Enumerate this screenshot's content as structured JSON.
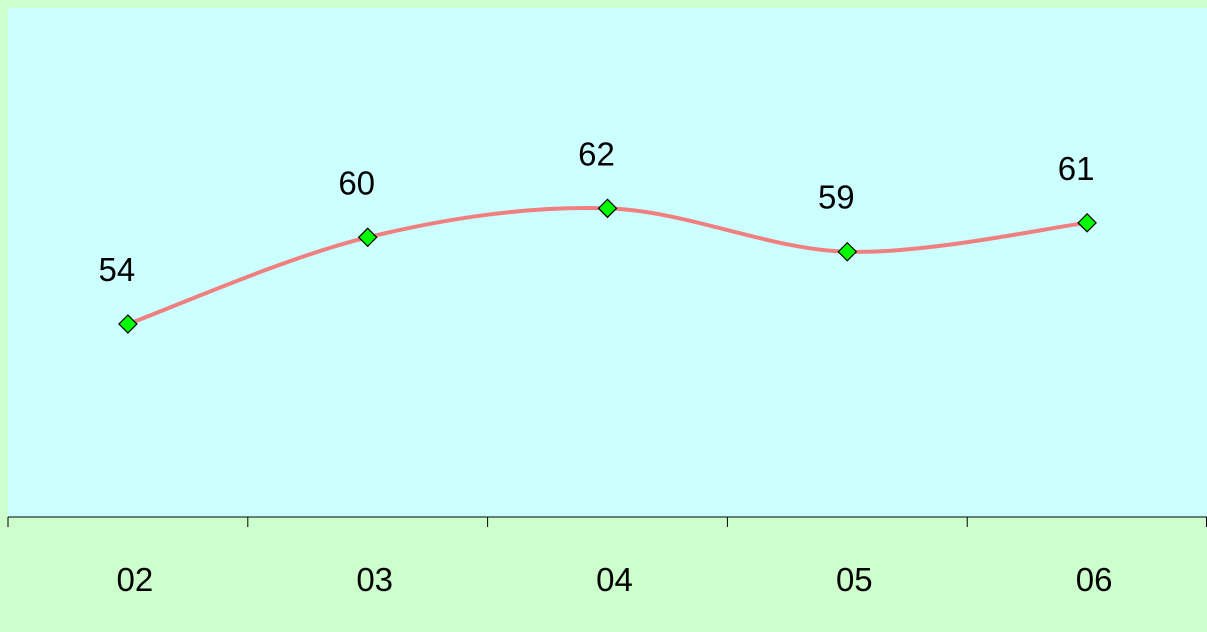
{
  "chart_data": {
    "type": "line",
    "title": "",
    "xlabel": "",
    "ylabel": "",
    "categories": [
      "02",
      "03",
      "04",
      "05",
      "06"
    ],
    "series": [
      {
        "values": [
          54,
          60,
          62,
          59,
          61
        ],
        "color": "#f08080",
        "marker": "diamond",
        "marker_color": "#00ff00"
      }
    ],
    "smoothed": true,
    "data_labels": true,
    "y_axis_visible": false,
    "grid": false,
    "legend": "none"
  },
  "colors": {
    "page_background": "#ccffcc",
    "plot_background": "#ccffff",
    "axis": "#000000"
  }
}
